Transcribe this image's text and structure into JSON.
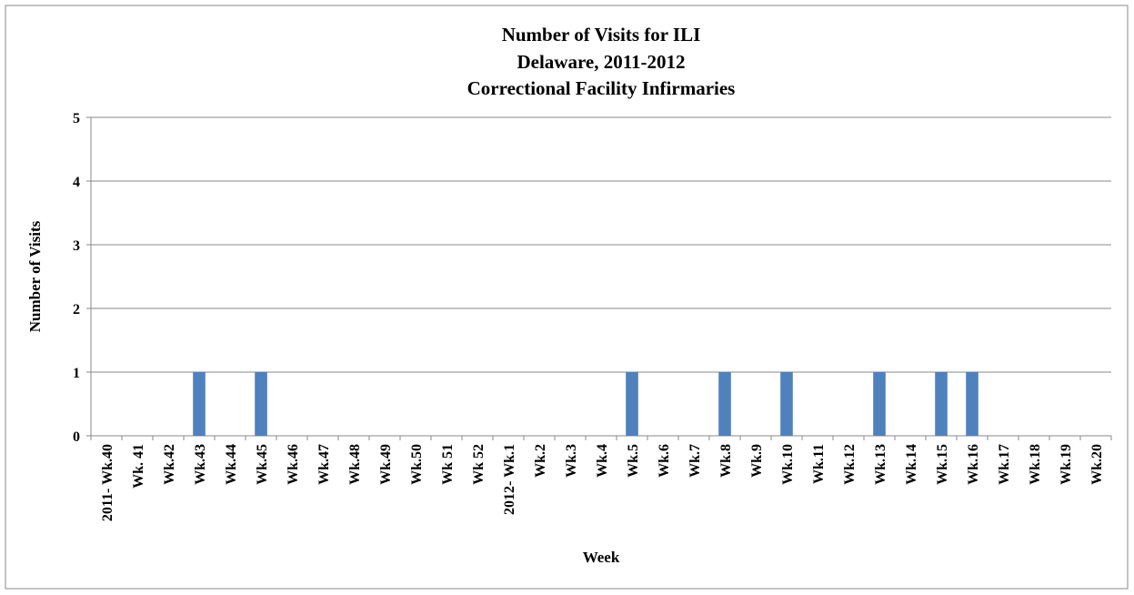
{
  "chart_data": {
    "type": "bar",
    "title": [
      "Number of Visits for ILI",
      "Delaware, 2011-2012",
      "Correctional Facility Infirmaries"
    ],
    "x_label": "Week",
    "y_label": "Number of Visits",
    "categories": [
      "2011- Wk.40",
      "Wk. 41",
      "Wk.42",
      "Wk.43",
      "Wk.44",
      "Wk.45",
      "Wk.46",
      "Wk.47",
      "Wk.48",
      "Wk.49",
      "Wk.50",
      "Wk 51",
      "Wk 52",
      "2012- Wk.1",
      "Wk.2",
      "Wk.3",
      "Wk.4",
      "Wk.5",
      "Wk.6",
      "Wk.7",
      "Wk.8",
      "Wk.9",
      "Wk.10",
      "Wk.11",
      "Wk.12",
      "Wk.13",
      "Wk.14",
      "Wk.15",
      "Wk.16",
      "Wk.17",
      "Wk.18",
      "Wk.19",
      "Wk.20"
    ],
    "values": [
      0,
      0,
      0,
      1,
      0,
      1,
      0,
      0,
      0,
      0,
      0,
      0,
      0,
      0,
      0,
      0,
      0,
      1,
      0,
      0,
      1,
      0,
      1,
      0,
      0,
      1,
      0,
      1,
      1,
      0,
      0,
      0,
      0
    ],
    "color": "#4f81bd",
    "ylim": [
      0,
      5
    ],
    "yticks": [
      0,
      1,
      2,
      3,
      4,
      5
    ],
    "grid": true
  }
}
